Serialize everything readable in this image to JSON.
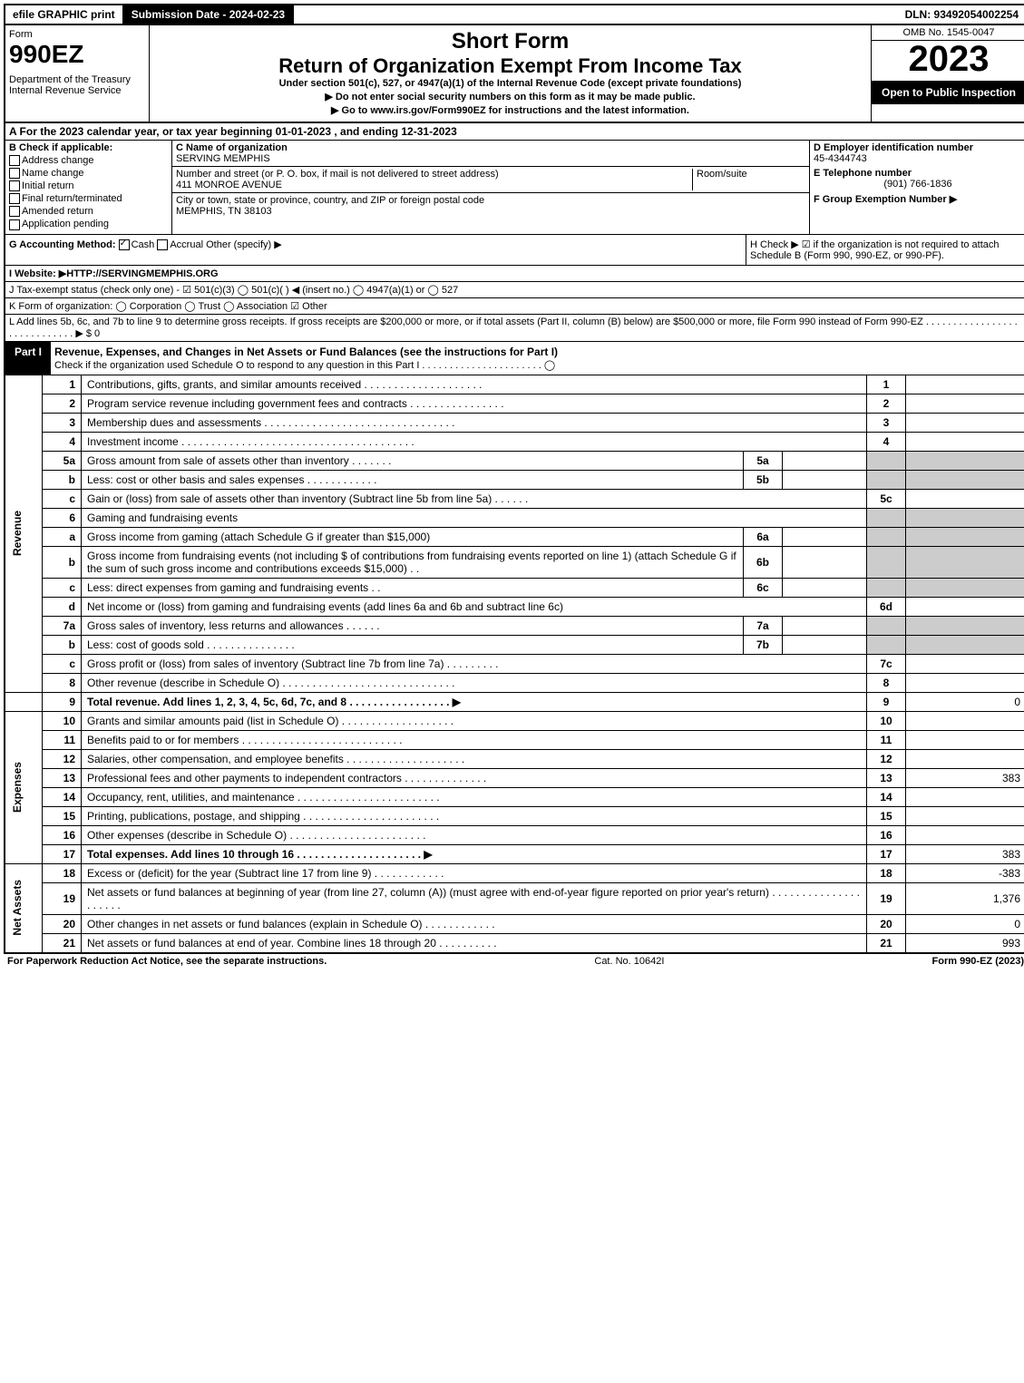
{
  "top": {
    "efile": "efile GRAPHIC print",
    "submission": "Submission Date - 2024-02-23",
    "dln": "DLN: 93492054002254"
  },
  "header": {
    "form_label": "Form",
    "form_number": "990EZ",
    "dept": "Department of the Treasury\nInternal Revenue Service",
    "title_short": "Short Form",
    "title_main": "Return of Organization Exempt From Income Tax",
    "subtitle": "Under section 501(c), 527, or 4947(a)(1) of the Internal Revenue Code (except private foundations)",
    "instr1": "▶ Do not enter social security numbers on this form as it may be made public.",
    "instr2": "▶ Go to www.irs.gov/Form990EZ for instructions and the latest information.",
    "omb": "OMB No. 1545-0047",
    "year": "2023",
    "open": "Open to Public Inspection"
  },
  "rowA": "A  For the 2023 calendar year, or tax year beginning 01-01-2023 , and ending 12-31-2023",
  "B": {
    "label": "B  Check if applicable:",
    "items": [
      "Address change",
      "Name change",
      "Initial return",
      "Final return/terminated",
      "Amended return",
      "Application pending"
    ]
  },
  "C": {
    "name_label": "C Name of organization",
    "name": "SERVING MEMPHIS",
    "addr_label": "Number and street (or P. O. box, if mail is not delivered to street address)",
    "addr": "411 MONROE AVENUE",
    "room_label": "Room/suite",
    "city_label": "City or town, state or province, country, and ZIP or foreign postal code",
    "city": "MEMPHIS, TN  38103"
  },
  "DEF": {
    "d_label": "D Employer identification number",
    "d_val": "45-4344743",
    "e_label": "E Telephone number",
    "e_val": "(901) 766-1836",
    "f_label": "F Group Exemption Number  ▶"
  },
  "G": {
    "label": "G Accounting Method:",
    "cash": "Cash",
    "accrual": "Accrual",
    "other": "Other (specify) ▶"
  },
  "H": "H  Check ▶ ☑ if the organization is not required to attach Schedule B (Form 990, 990-EZ, or 990-PF).",
  "I": "I Website: ▶HTTP://SERVINGMEMPHIS.ORG",
  "J": "J Tax-exempt status (check only one) - ☑ 501(c)(3)  ◯ 501(c)( ) ◀ (insert no.)  ◯ 4947(a)(1) or  ◯ 527",
  "K": "K Form of organization:  ◯ Corporation  ◯ Trust  ◯ Association  ☑ Other",
  "L": "L Add lines 5b, 6c, and 7b to line 9 to determine gross receipts. If gross receipts are $200,000 or more, or if total assets (Part II, column (B) below) are $500,000 or more, file Form 990 instead of Form 990-EZ . . . . . . . . . . . . . . . . . . . . . . . . . . . . . ▶ $ 0",
  "part1": {
    "label": "Part I",
    "title": "Revenue, Expenses, and Changes in Net Assets or Fund Balances (see the instructions for Part I)",
    "sub": "Check if the organization used Schedule O to respond to any question in this Part I . . . . . . . . . . . . . . . . . . . . . . ◯"
  },
  "sections": {
    "revenue": "Revenue",
    "expenses": "Expenses",
    "netassets": "Net Assets"
  },
  "lines": [
    {
      "n": "1",
      "t": "Contributions, gifts, grants, and similar amounts received . . . . . . . . . . . . . . . . . . . .",
      "b": "1",
      "v": ""
    },
    {
      "n": "2",
      "t": "Program service revenue including government fees and contracts . . . . . . . . . . . . . . . .",
      "b": "2",
      "v": ""
    },
    {
      "n": "3",
      "t": "Membership dues and assessments . . . . . . . . . . . . . . . . . . . . . . . . . . . . . . . .",
      "b": "3",
      "v": ""
    },
    {
      "n": "4",
      "t": "Investment income . . . . . . . . . . . . . . . . . . . . . . . . . . . . . . . . . . . . . . .",
      "b": "4",
      "v": ""
    }
  ],
  "line5a": {
    "n": "5a",
    "t": "Gross amount from sale of assets other than inventory . . . . . . .",
    "mb": "5a"
  },
  "line5b": {
    "n": "b",
    "t": "Less: cost or other basis and sales expenses . . . . . . . . . . . .",
    "mb": "5b"
  },
  "line5c": {
    "n": "c",
    "t": "Gain or (loss) from sale of assets other than inventory (Subtract line 5b from line 5a) . . . . . .",
    "b": "5c",
    "v": ""
  },
  "line6": {
    "n": "6",
    "t": "Gaming and fundraising events"
  },
  "line6a": {
    "n": "a",
    "t": "Gross income from gaming (attach Schedule G if greater than $15,000)",
    "mb": "6a"
  },
  "line6b": {
    "n": "b",
    "t": "Gross income from fundraising events (not including $                       of contributions from fundraising events reported on line 1) (attach Schedule G if the sum of such gross income and contributions exceeds $15,000)   . .",
    "mb": "6b"
  },
  "line6c": {
    "n": "c",
    "t": "Less: direct expenses from gaming and fundraising events    . .",
    "mb": "6c"
  },
  "line6d": {
    "n": "d",
    "t": "Net income or (loss) from gaming and fundraising events (add lines 6a and 6b and subtract line 6c)",
    "b": "6d",
    "v": ""
  },
  "line7a": {
    "n": "7a",
    "t": "Gross sales of inventory, less returns and allowances . . . . . .",
    "mb": "7a"
  },
  "line7b": {
    "n": "b",
    "t": "Less: cost of goods sold          . . . . . . . . . . . . . . .",
    "mb": "7b"
  },
  "line7c": {
    "n": "c",
    "t": "Gross profit or (loss) from sales of inventory (Subtract line 7b from line 7a) . . . . . . . . .",
    "b": "7c",
    "v": ""
  },
  "line8": {
    "n": "8",
    "t": "Other revenue (describe in Schedule O) . . . . . . . . . . . . . . . . . . . . . . . . . . . . .",
    "b": "8",
    "v": ""
  },
  "line9": {
    "n": "9",
    "t": "Total revenue. Add lines 1, 2, 3, 4, 5c, 6d, 7c, and 8  . . . . . . . . . . . . . . . . .    ▶",
    "b": "9",
    "v": "0"
  },
  "expLines": [
    {
      "n": "10",
      "t": "Grants and similar amounts paid (list in Schedule O) . . . . . . . . . . . . . . . . . . .",
      "b": "10",
      "v": ""
    },
    {
      "n": "11",
      "t": "Benefits paid to or for members     . . . . . . . . . . . . . . . . . . . . . . . . . . .",
      "b": "11",
      "v": ""
    },
    {
      "n": "12",
      "t": "Salaries, other compensation, and employee benefits . . . . . . . . . . . . . . . . . . . .",
      "b": "12",
      "v": ""
    },
    {
      "n": "13",
      "t": "Professional fees and other payments to independent contractors . . . . . . . . . . . . . .",
      "b": "13",
      "v": "383"
    },
    {
      "n": "14",
      "t": "Occupancy, rent, utilities, and maintenance . . . . . . . . . . . . . . . . . . . . . . . .",
      "b": "14",
      "v": ""
    },
    {
      "n": "15",
      "t": "Printing, publications, postage, and shipping . . . . . . . . . . . . . . . . . . . . . . .",
      "b": "15",
      "v": ""
    },
    {
      "n": "16",
      "t": "Other expenses (describe in Schedule O)     . . . . . . . . . . . . . . . . . . . . . . .",
      "b": "16",
      "v": ""
    },
    {
      "n": "17",
      "t": "Total expenses. Add lines 10 through 16     . . . . . . . . . . . . . . . . . . . . .   ▶",
      "b": "17",
      "v": "383"
    }
  ],
  "naLines": [
    {
      "n": "18",
      "t": "Excess or (deficit) for the year (Subtract line 17 from line 9)       . . . . . . . . . . . .",
      "b": "18",
      "v": "-383"
    },
    {
      "n": "19",
      "t": "Net assets or fund balances at beginning of year (from line 27, column (A)) (must agree with end-of-year figure reported on prior year's return) . . . . . . . . . . . . . . . . . . . . .",
      "b": "19",
      "v": "1,376"
    },
    {
      "n": "20",
      "t": "Other changes in net assets or fund balances (explain in Schedule O) . . . . . . . . . . . .",
      "b": "20",
      "v": "0"
    },
    {
      "n": "21",
      "t": "Net assets or fund balances at end of year. Combine lines 18 through 20 . . . . . . . . . .",
      "b": "21",
      "v": "993"
    }
  ],
  "footer": {
    "left": "For Paperwork Reduction Act Notice, see the separate instructions.",
    "cat": "Cat. No. 10642I",
    "right": "Form 990-EZ (2023)"
  }
}
